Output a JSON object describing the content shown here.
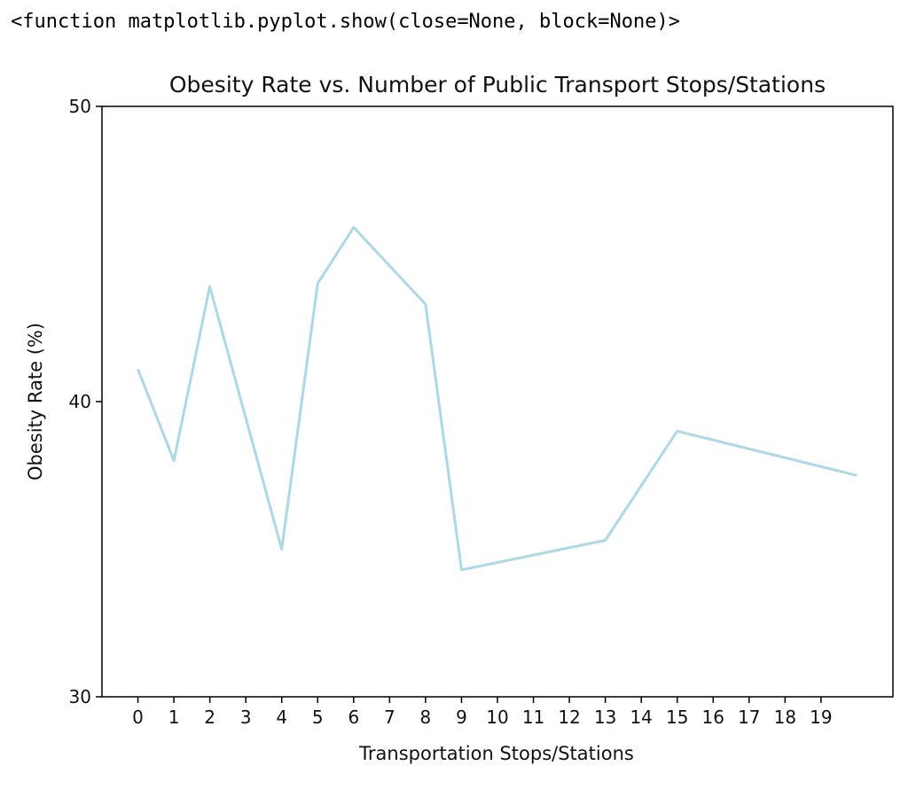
{
  "output_text": "<function matplotlib.pyplot.show(close=None, block=None)>",
  "chart_data": {
    "type": "line",
    "title": "Obesity Rate vs. Number of Public Transport Stops/Stations",
    "xlabel": "Transportation Stops/Stations",
    "ylabel": "Obesity Rate (%)",
    "x": [
      0,
      1,
      2,
      4,
      5,
      6,
      8,
      9,
      13,
      15,
      20
    ],
    "y": [
      41.1,
      38.0,
      43.9,
      35.0,
      44.0,
      45.9,
      43.3,
      34.3,
      35.3,
      39.0,
      37.5
    ],
    "xticks": [
      "0",
      "1",
      "2",
      "3",
      "4",
      "5",
      "6",
      "7",
      "8",
      "9",
      "10",
      "11",
      "12",
      "13",
      "14",
      "15",
      "16",
      "17",
      "18",
      "19"
    ],
    "yticks": [
      "30",
      "40",
      "50"
    ],
    "xlim": [
      -1,
      21
    ],
    "ylim": [
      30,
      50
    ],
    "line_color": "#add8e6",
    "grid": false
  }
}
